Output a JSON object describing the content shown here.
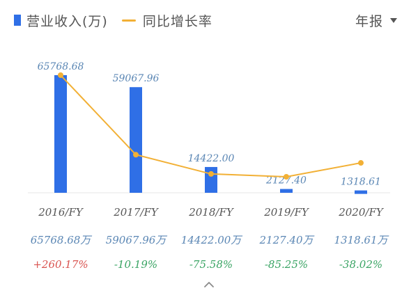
{
  "legend": {
    "revenue_label": "营业收入(万)",
    "growth_label": "同比增长率"
  },
  "period_selector": {
    "label": "年报"
  },
  "colors": {
    "bar": "#2f6fe6",
    "line": "#f2b035",
    "value_label": "#5a86b4",
    "positive": "#d9534f",
    "negative": "#3aa464",
    "axis_text": "#555555"
  },
  "chart_data": {
    "type": "bar",
    "categories": [
      "2016/FY",
      "2017/FY",
      "2018/FY",
      "2019/FY",
      "2020/FY"
    ],
    "series": [
      {
        "name": "营业收入(万)",
        "type": "bar",
        "values": [
          65768.68,
          59067.96,
          14422.0,
          2127.4,
          1318.61
        ]
      },
      {
        "name": "同比增长率",
        "type": "line",
        "values": [
          260.17,
          -10.19,
          -75.58,
          -85.25,
          -38.02
        ]
      }
    ],
    "value_labels": [
      "65768.68",
      "59067.96",
      "14422.00",
      "2127.40",
      "1318.61"
    ],
    "revenue_row": [
      "65768.68万",
      "59067.96万",
      "14422.00万",
      "2127.40万",
      "1318.61万"
    ],
    "growth_row": [
      "+260.17%",
      "-10.19%",
      "-75.58%",
      "-85.25%",
      "-38.02%"
    ],
    "ylim": [
      0,
      65768.68
    ],
    "grid": false,
    "legend_position": "top-left"
  }
}
